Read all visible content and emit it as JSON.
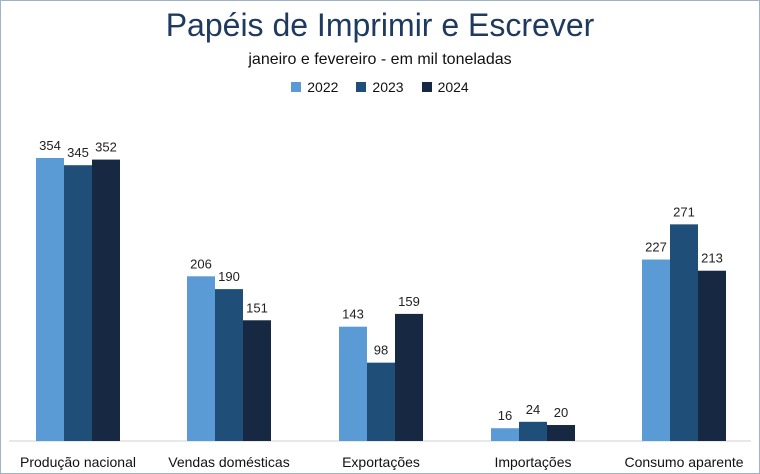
{
  "chart_data": {
    "type": "bar",
    "title": "Papéis de Imprimir e Escrever",
    "subtitle": "janeiro e fevereiro  -  em mil toneladas",
    "categories": [
      "Produção nacional",
      "Vendas domésticas",
      "Exportações",
      "Importações",
      "Consumo aparente"
    ],
    "series": [
      {
        "name": "2022",
        "color": "#5b9bd5",
        "values": [
          354,
          206,
          143,
          16,
          227
        ]
      },
      {
        "name": "2023",
        "color": "#1f4e79",
        "values": [
          345,
          190,
          98,
          24,
          271
        ]
      },
      {
        "name": "2024",
        "color": "#172842",
        "values": [
          352,
          151,
          159,
          20,
          213
        ]
      }
    ],
    "ylim": [
      0,
      400
    ],
    "grid": false,
    "legend_position": "top-center"
  }
}
